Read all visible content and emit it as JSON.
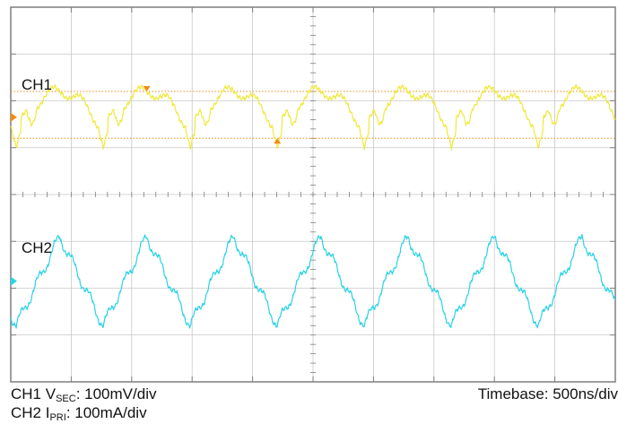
{
  "colors": {
    "background": "#ffffff",
    "frame": "#7f7f7f",
    "grid": "#c8c8c8",
    "ch1": "#f0e93c",
    "ch2": "#29d3e6",
    "cursor": "#f08c14"
  },
  "icons": [
    "ch1-ground-marker-icon",
    "ch2-ground-marker-icon",
    "cursor-triangle-icon"
  ],
  "chart_data": {
    "type": "line",
    "grid": true,
    "x_divisions": 10,
    "y_divisions": 8,
    "timebase_ns_per_div": 500,
    "x_range_ns": [
      0,
      5000
    ],
    "channel_labels": {
      "ch1": "CH1",
      "ch2": "CH2"
    },
    "cursor_levels_div": [
      2.2,
      1.2
    ],
    "series": [
      {
        "id": "ch1",
        "name": "CH1",
        "period_ns": 720,
        "phase_ns": 45,
        "baseline_div": 1.35,
        "peak_div": 2.2,
        "dip_div": 1.05,
        "spike_div": 1.0
      },
      {
        "id": "ch2",
        "name": "CH2",
        "period_ns": 720,
        "phase_ns": 45,
        "center_div": -1.85,
        "amplitude_div": 0.95
      }
    ]
  },
  "captions": {
    "ch1_prefix": "CH1 V",
    "ch1_sub": "SEC",
    "ch1_scale": ": 100mV/div",
    "ch2_prefix": "CH2 I",
    "ch2_sub": "PRI",
    "ch2_scale": ": 100mA/div",
    "timebase": "Timebase: 500ns/div"
  }
}
